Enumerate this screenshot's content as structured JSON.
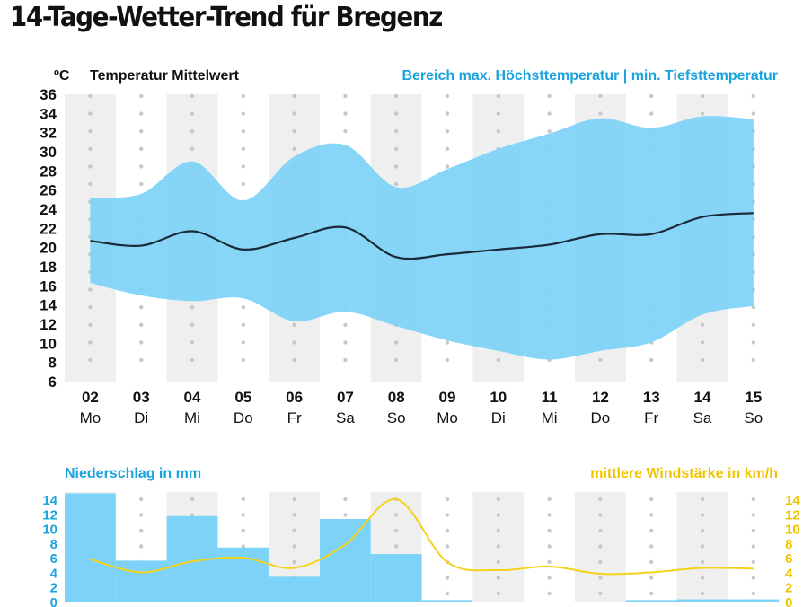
{
  "title": "14-Tage-Wetter-Trend für Bregenz",
  "colors": {
    "range_fill": "#7dd3f7",
    "mean_line": "#1b2a3a",
    "precip_fill": "#7dd3f7",
    "wind_line": "#f5d21a",
    "stripe": "#efefef",
    "dots": "#c8c8c8",
    "blue_text": "#1aa3dc",
    "yellow_text": "#f0c400"
  },
  "chart_data": [
    {
      "type": "area",
      "unit_label": "ºC",
      "legend": {
        "mean": "Temperatur Mittelwert",
        "range": "Bereich max. Höchsttemperatur | min. Tiefsttemperatur"
      },
      "days": [
        "02",
        "03",
        "04",
        "05",
        "06",
        "07",
        "08",
        "09",
        "10",
        "11",
        "12",
        "13",
        "14",
        "15"
      ],
      "weekdays": [
        "Mo",
        "Di",
        "Mi",
        "Do",
        "Fr",
        "Sa",
        "So",
        "Mo",
        "Di",
        "Mi",
        "Do",
        "Fr",
        "Sa",
        "So"
      ],
      "ylim": [
        6,
        36
      ],
      "yticks": [
        "6",
        "8",
        "10",
        "12",
        "14",
        "16",
        "18",
        "20",
        "22",
        "24",
        "26",
        "28",
        "30",
        "32",
        "34",
        "36"
      ],
      "series": [
        {
          "name": "Temperatur Mittelwert",
          "values": [
            20.7,
            20.2,
            21.7,
            19.8,
            21.0,
            22.1,
            19.0,
            19.3,
            19.8,
            20.3,
            21.4,
            21.4,
            23.2,
            23.6
          ]
        },
        {
          "name": "max. Höchsttemperatur",
          "values": [
            25.2,
            25.6,
            29.0,
            24.9,
            29.5,
            30.7,
            26.3,
            28.2,
            30.3,
            31.9,
            33.5,
            32.5,
            33.7,
            33.4
          ]
        },
        {
          "name": "min. Tiefsttemperatur",
          "values": [
            16.3,
            15.0,
            14.4,
            14.7,
            12.3,
            13.3,
            11.8,
            10.3,
            9.2,
            8.3,
            9.2,
            10.1,
            13.0,
            13.9
          ]
        }
      ]
    },
    {
      "type": "bar",
      "left_label": "Niederschlag in mm",
      "right_label": "mittlere Windstärke in km/h",
      "ylim": [
        0,
        14
      ],
      "yticks": [
        "0",
        "2",
        "4",
        "6",
        "8",
        "10",
        "12",
        "14"
      ],
      "categories": [
        "02",
        "03",
        "04",
        "05",
        "06",
        "07",
        "08",
        "09",
        "10",
        "11",
        "12",
        "13",
        "14",
        "15"
      ],
      "series": [
        {
          "name": "Niederschlag in mm",
          "values": [
            14.8,
            5.6,
            11.7,
            7.4,
            3.4,
            11.3,
            6.5,
            0.2,
            0,
            0,
            0,
            0.2,
            0.3,
            0.3
          ]
        },
        {
          "name": "mittlere Windstärke in km/h",
          "values": [
            5.8,
            4.0,
            5.5,
            6.0,
            4.6,
            7.8,
            14.0,
            5.4,
            4.3,
            4.8,
            3.8,
            4.0,
            4.6,
            4.5
          ]
        }
      ]
    }
  ]
}
